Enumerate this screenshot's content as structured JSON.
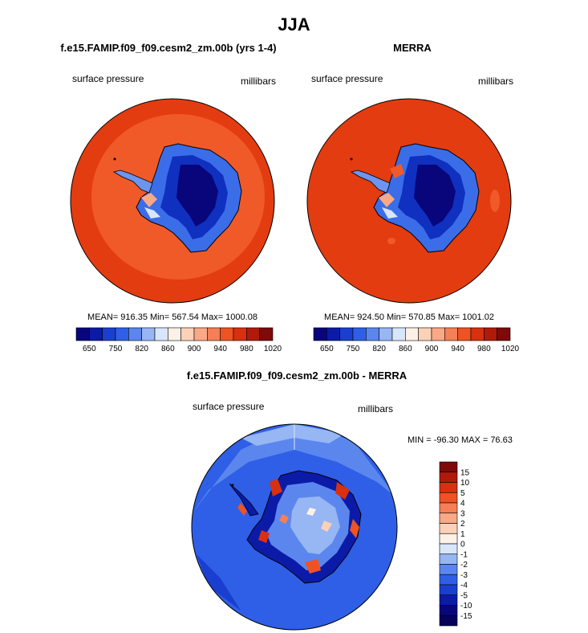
{
  "figure": {
    "title": "JJA",
    "panels": [
      {
        "title": "f.e15.FAMIP.f09_f09.cesm2_zm.00b (yrs 1-4)",
        "left_label": "surface pressure",
        "right_label": "millibars",
        "stats": "MEAN= 916.35  Min= 567.54  Max= 1000.08"
      },
      {
        "title": "MERRA",
        "left_label": "surface pressure",
        "right_label": "millibars",
        "stats": "MEAN= 924.50  Min= 570.85  Max= 1001.02"
      },
      {
        "title": "f.e15.FAMIP.f09_f09.cesm2_zm.00b - MERRA",
        "left_label": "surface pressure",
        "right_label": "millibars",
        "stats": "MIN = -96.30 MAX =  76.63"
      }
    ]
  },
  "chart_data": [
    {
      "type": "heatmap",
      "projection": "south polar stereographic",
      "field": "surface pressure",
      "units": "millibars",
      "mean": 916.35,
      "min": 567.54,
      "max": 1000.08,
      "colorbar": {
        "orientation": "horizontal",
        "levels": [
          "650",
          "750",
          "820",
          "860",
          "900",
          "940",
          "980",
          "1020"
        ],
        "colors": [
          "#08067a",
          "#0b1ba8",
          "#1a3fd0",
          "#2f5fe6",
          "#5b86ee",
          "#96b6f4",
          "#d8e6fb",
          "#fdf0e6",
          "#fcd1b8",
          "#f9a986",
          "#f57f57",
          "#ef5323",
          "#d93010",
          "#b11a0a",
          "#7e0a0a"
        ]
      }
    },
    {
      "type": "heatmap",
      "projection": "south polar stereographic",
      "field": "surface pressure",
      "units": "millibars",
      "mean": 924.5,
      "min": 570.85,
      "max": 1001.02,
      "colorbar": {
        "orientation": "horizontal",
        "levels": [
          "650",
          "750",
          "820",
          "860",
          "900",
          "940",
          "980",
          "1020"
        ],
        "colors": [
          "#08067a",
          "#0b1ba8",
          "#1a3fd0",
          "#2f5fe6",
          "#5b86ee",
          "#96b6f4",
          "#d8e6fb",
          "#fdf0e6",
          "#fcd1b8",
          "#f9a986",
          "#f57f57",
          "#ef5323",
          "#d93010",
          "#b11a0a",
          "#7e0a0a"
        ]
      }
    },
    {
      "type": "heatmap",
      "projection": "south polar stereographic",
      "field": "surface pressure difference",
      "units": "millibars",
      "min": -96.3,
      "max": 76.63,
      "colorbar": {
        "orientation": "vertical",
        "levels": [
          "15",
          "10",
          "5",
          "4",
          "3",
          "2",
          "1",
          "0",
          "-1",
          "-2",
          "-3",
          "-4",
          "-5",
          "-10",
          "-15"
        ],
        "colors": [
          "#7e0a0a",
          "#b11a0a",
          "#d93010",
          "#ef5323",
          "#f57f57",
          "#f9a986",
          "#fcd1b8",
          "#fdf0e6",
          "#d8e6fb",
          "#96b6f4",
          "#5b86ee",
          "#2f5fe6",
          "#1a3fd0",
          "#0b1ba8",
          "#08067a",
          "#05035a"
        ]
      }
    }
  ]
}
